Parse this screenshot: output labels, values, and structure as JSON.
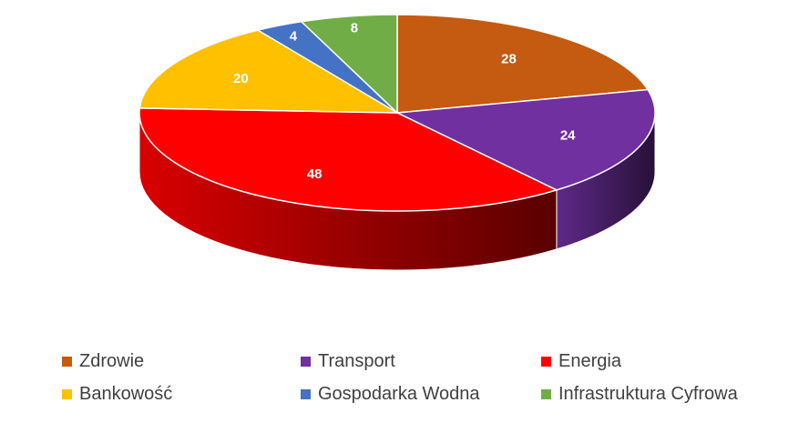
{
  "chart_data": {
    "type": "pie",
    "style": "3d",
    "categories": [
      "Zdrowie",
      "Transport",
      "Energia",
      "Bankowość",
      "Gospodarka Wodna",
      "Infrastruktura Cyfrowa"
    ],
    "values": [
      28,
      24,
      48,
      20,
      4,
      8
    ],
    "colors": [
      "#c55a11",
      "#7030a0",
      "#ff0000",
      "#ffc000",
      "#4472c4",
      "#70ad47"
    ],
    "legend_position": "bottom",
    "data_labels": true
  }
}
